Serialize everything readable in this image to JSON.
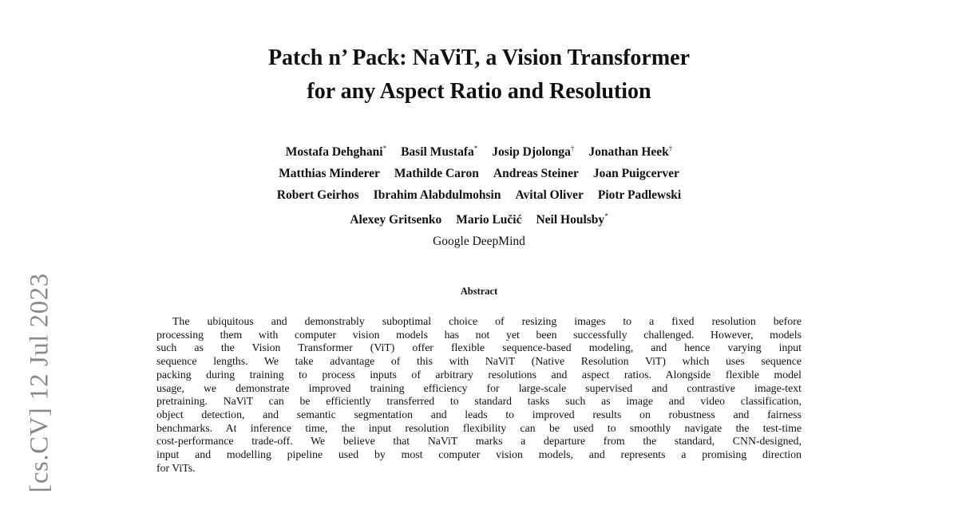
{
  "title": [
    "Patch n’ Pack: NaViT, a Vision Transformer",
    "for any Aspect Ratio and Resolution"
  ],
  "authors": [
    [
      {
        "name": "Mostafa Dehghani",
        "mark": "*"
      },
      {
        "name": "Basil Mustafa",
        "mark": "*"
      },
      {
        "name": "Josip Djolonga",
        "mark": "†"
      },
      {
        "name": "Jonathan Heek",
        "mark": "†"
      }
    ],
    [
      {
        "name": "Matthias Minderer",
        "mark": ""
      },
      {
        "name": "Mathilde Caron",
        "mark": ""
      },
      {
        "name": "Andreas Steiner",
        "mark": ""
      },
      {
        "name": "Joan Puigcerver",
        "mark": ""
      }
    ],
    [
      {
        "name": "Robert Geirhos",
        "mark": ""
      },
      {
        "name": "Ibrahim Alabdulmohsin",
        "mark": ""
      },
      {
        "name": "Avital Oliver",
        "mark": ""
      },
      {
        "name": "Piotr Padlewski",
        "mark": ""
      }
    ],
    [
      {
        "name": "Alexey Gritsenko",
        "mark": ""
      },
      {
        "name": "Mario Lučić",
        "mark": ""
      },
      {
        "name": "Neil Houlsby",
        "mark": "*"
      }
    ]
  ],
  "affiliation": "Google DeepMind",
  "abstract_heading": "Abstract",
  "abstract_lines": [
    "The ubiquitous and demonstrably suboptimal choice of resizing images to a fixed resolution before",
    "processing them with computer vision models has not yet been successfully challenged. However, models",
    "such as the Vision Transformer (ViT) offer flexible sequence-based modeling, and hence varying input",
    "sequence lengths. We take advantage of this with NaViT (Native Resolution ViT) which uses sequence",
    "packing during training to process inputs of arbitrary resolutions and aspect ratios. Alongside flexible model",
    "usage, we demonstrate improved training efficiency for large-scale supervised and contrastive image-text",
    "pretraining. NaViT can be efficiently transferred to standard tasks such as image and video classification,",
    "object detection, and semantic segmentation and leads to improved results on robustness and fairness",
    "benchmarks. At inference time, the input resolution flexibility can be used to smoothly navigate the test-time",
    "cost-performance trade-off. We believe that NaViT marks a departure from the standard, CNN-designed,",
    "input and modelling pipeline used by most computer vision models, and represents a promising direction",
    "for ViTs."
  ],
  "arxiv_stamp": "[cs.CV]  12 Jul 2023"
}
